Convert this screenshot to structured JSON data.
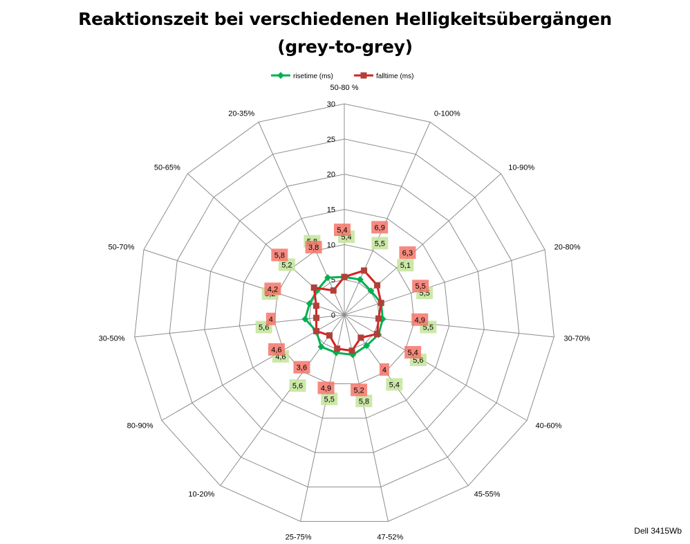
{
  "chart_data": {
    "type": "radar",
    "title_line1": "Reaktionszeit bei verschiedenen Helligkeitsübergängen",
    "title_line2": "(grey-to-grey)",
    "categories": [
      "50-80 %",
      "0-100%",
      "10-90%",
      "20-80%",
      "30-70%",
      "40-60%",
      "45-55%",
      "47-52%",
      "25-75%",
      "10-20%",
      "80-90%",
      "30-50%",
      "50-70%",
      "50-65%",
      "20-35%"
    ],
    "rmax": 30,
    "ticks": [
      0,
      5,
      10,
      15,
      20,
      25,
      30
    ],
    "grid": true,
    "legend_position": "top",
    "series": [
      {
        "name": "risetime (ms)",
        "color": "#00b050",
        "marker": "diamond",
        "label_bg": "#c3e49a",
        "values": [
          5.4,
          5.5,
          5.1,
          5.5,
          5.5,
          5.6,
          5.4,
          5.8,
          5.5,
          5.6,
          4.6,
          5.6,
          5.2,
          5.2,
          5.8
        ],
        "labels": [
          "5,4",
          "5,5",
          "5,1",
          "5,5",
          "5,5",
          "5,6",
          "5,4",
          "5,8",
          "5,5",
          "5,6",
          "4,6",
          "5,6",
          "5,2",
          "5,2",
          "5,8"
        ]
      },
      {
        "name": "falltime (ms)",
        "color": "#d72020",
        "marker": "square",
        "label_bg": "#f4766a",
        "values": [
          5.4,
          6.9,
          6.3,
          5.5,
          4.9,
          5.4,
          4.0,
          5.2,
          4.9,
          3.6,
          4.6,
          4.0,
          4.2,
          5.8,
          3.8
        ],
        "labels": [
          "5,4",
          "6,9",
          "6,3",
          "5,5",
          "4,9",
          "5,4",
          "4",
          "5,2",
          "4,9",
          "3,6",
          "4,6",
          "4",
          "4,2",
          "5,8",
          "3,8"
        ]
      }
    ]
  },
  "watermark": "Dell 3415Wb"
}
